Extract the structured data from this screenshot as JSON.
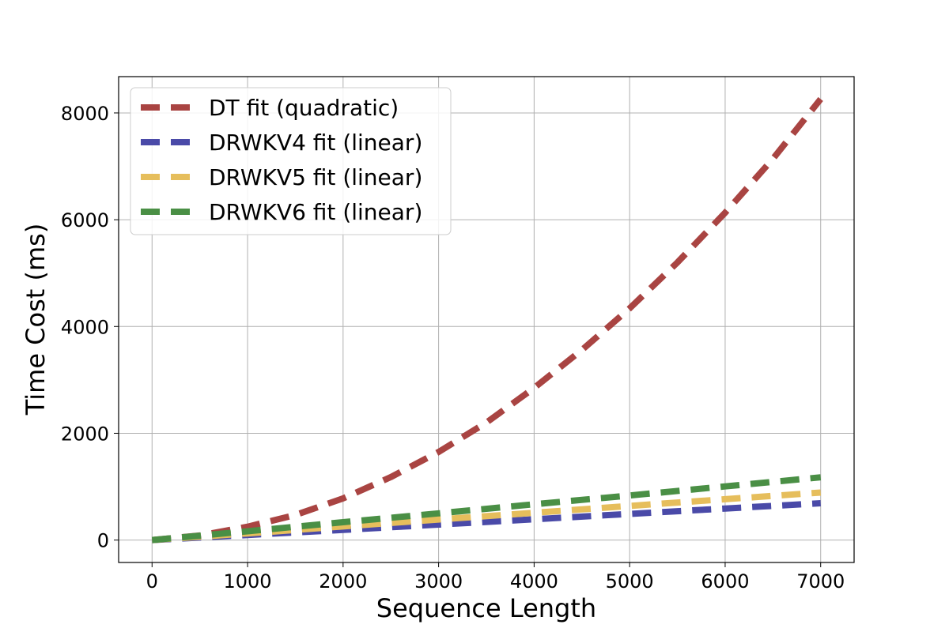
{
  "chart_data": {
    "type": "line",
    "title": "",
    "xlabel": "Sequence Length",
    "ylabel": "Time Cost (ms)",
    "xlim": [
      -350,
      7350
    ],
    "ylim": [
      -420,
      8680
    ],
    "xticks": [
      0,
      1000,
      2000,
      3000,
      4000,
      5000,
      6000,
      7000
    ],
    "yticks": [
      0,
      2000,
      4000,
      6000,
      8000
    ],
    "grid": true,
    "legend_position": "top-left",
    "series": [
      {
        "name": "DT fit (quadratic)",
        "color": "#A94442",
        "x": [
          0,
          500,
          1000,
          1500,
          2000,
          2500,
          3000,
          3500,
          4000,
          4500,
          5000,
          5500,
          6000,
          6500,
          7000
        ],
        "y": [
          0,
          85,
          250,
          470,
          780,
          1180,
          1650,
          2200,
          2850,
          3560,
          4340,
          5200,
          6130,
          7140,
          8260
        ]
      },
      {
        "name": "DRWKV4 fit (linear)",
        "color": "#4A4AA8",
        "x": [
          0,
          1000,
          2000,
          3000,
          4000,
          5000,
          6000,
          7000
        ],
        "y": [
          0,
          95,
          190,
          290,
          390,
          490,
          590,
          690
        ]
      },
      {
        "name": "DRWKV5 fit (linear)",
        "color": "#E6BE5C",
        "x": [
          0,
          1000,
          2000,
          3000,
          4000,
          5000,
          6000,
          7000
        ],
        "y": [
          0,
          125,
          255,
          385,
          510,
          640,
          765,
          890
        ]
      },
      {
        "name": "DRWKV6 fit (linear)",
        "color": "#4A8F45",
        "x": [
          0,
          1000,
          2000,
          3000,
          4000,
          5000,
          6000,
          7000
        ],
        "y": [
          0,
          165,
          335,
          500,
          670,
          835,
          1005,
          1175
        ]
      }
    ]
  }
}
